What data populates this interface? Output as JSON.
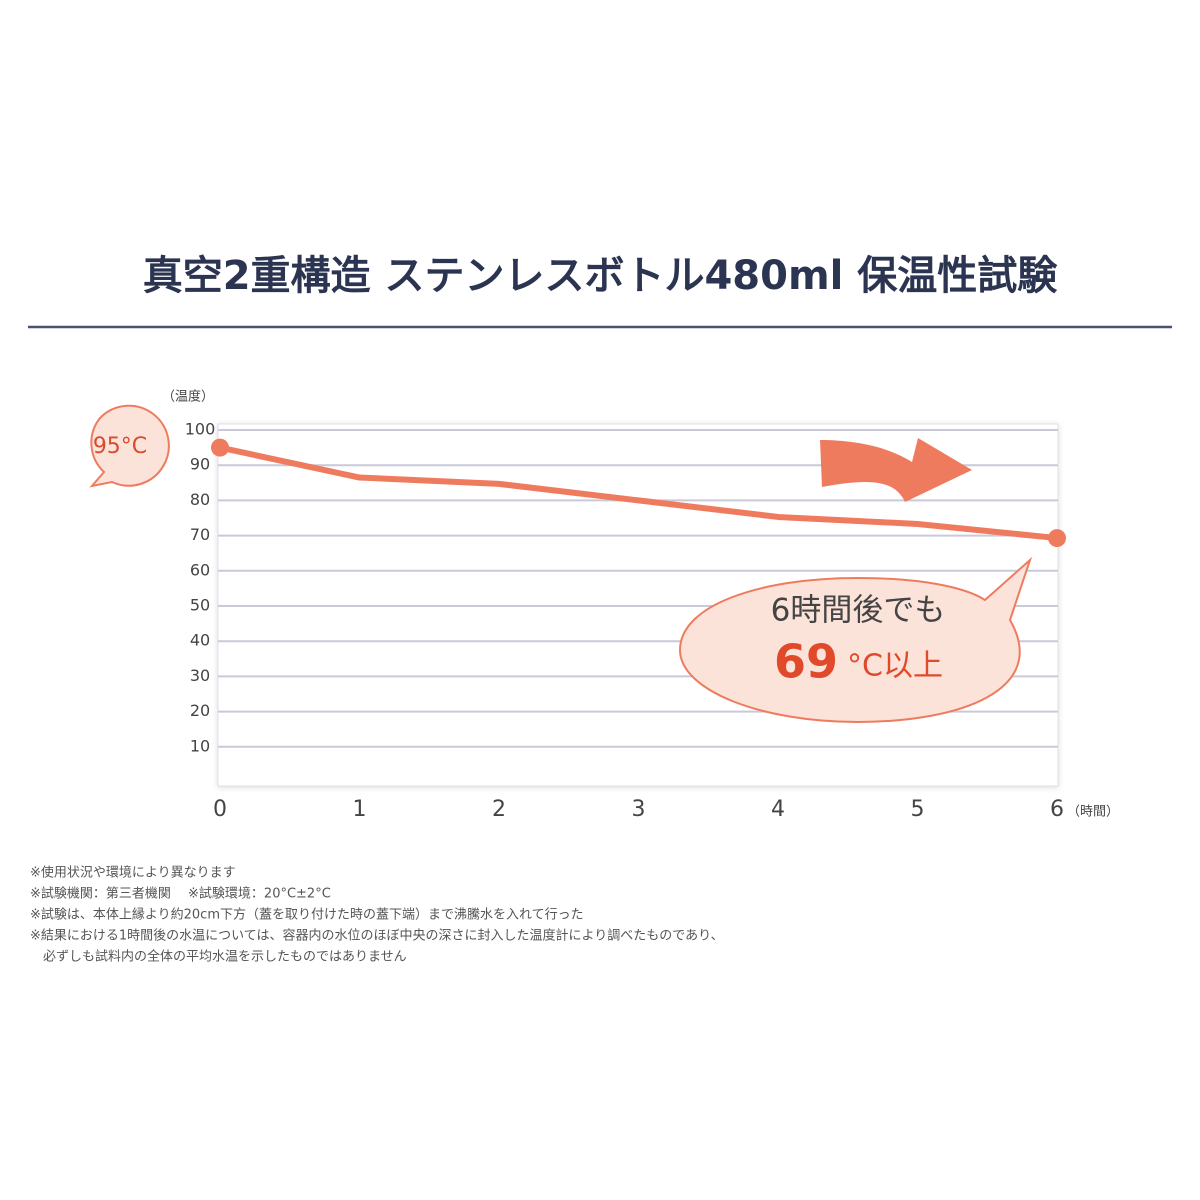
{
  "chart_data": {
    "type": "line",
    "title": "真空2重構造 ステンレスボトル480ml 保温性試験",
    "y_label": "（温度）",
    "x_label": "（時間）",
    "x": [
      0,
      1,
      2,
      3,
      4,
      5,
      6
    ],
    "values": [
      95,
      86.5,
      84.7,
      80,
      75.3,
      73.3,
      69.3
    ],
    "color": "#ef7b5e",
    "xlim": [
      0,
      6
    ],
    "xticks": [
      0,
      1,
      2,
      3,
      4,
      5,
      6
    ],
    "ylim": [
      0,
      100
    ],
    "yticks": [
      10,
      20,
      30,
      40,
      50,
      60,
      70,
      80,
      90,
      100
    ],
    "grid": true,
    "annotations": {
      "start": "95°C",
      "callout_line1": "6時間後でも",
      "callout_number": "69",
      "callout_unit": "°C以上"
    },
    "notes": [
      "※使用状況や環境により異なります",
      "※試験機関：第三者機関　 ※試験環境：20°C±2°C",
      "※試験は、本体上縁より約20cm下方（蓋を取り付けた時の蓋下端）まで沸騰水を入れて行った",
      "※結果における1時間後の水温については、容器内の水位のほぼ中央の深さに封入した温度計により調べたものであり、",
      "　必ずしも試料内の全体の平均水温を示したものではありません"
    ]
  }
}
